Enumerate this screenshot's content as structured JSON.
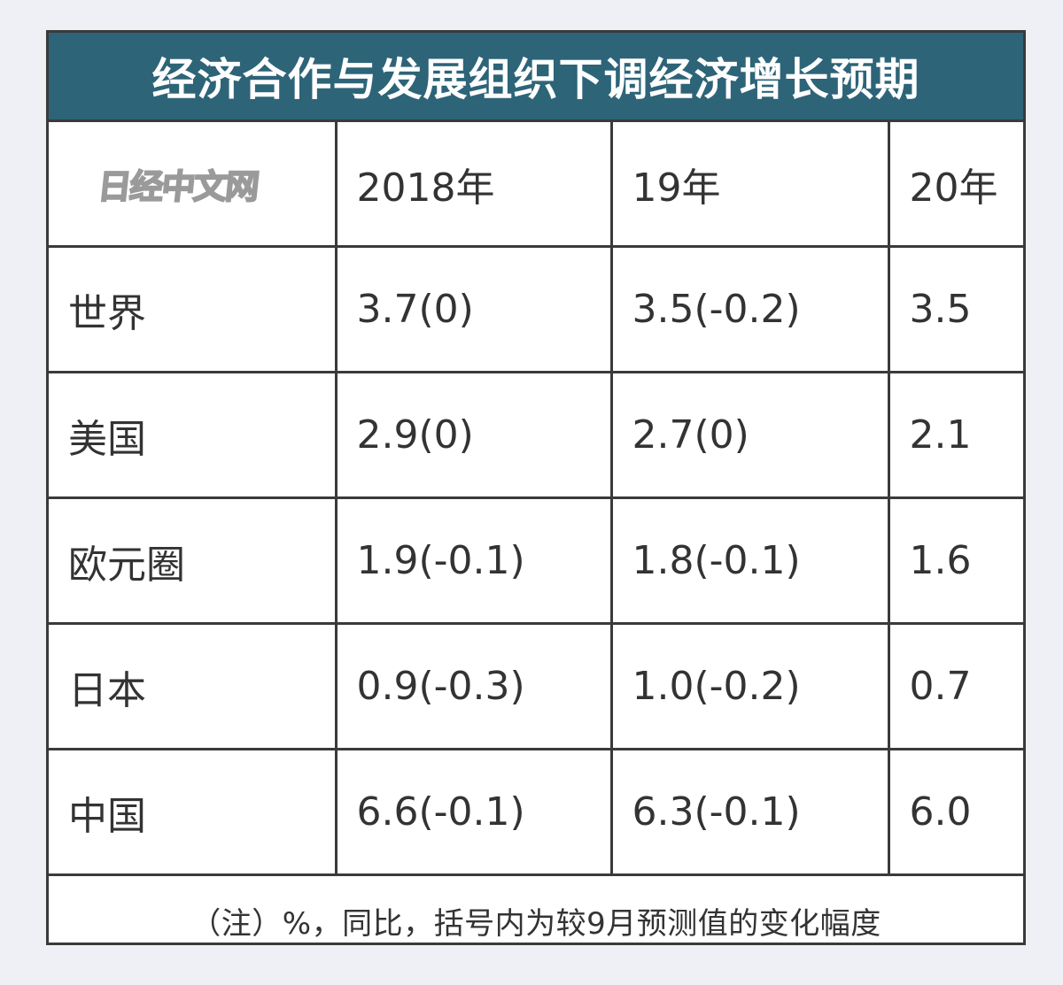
{
  "title": "经济合作与发展组织下调经济增长预期",
  "watermark": "日经中文网",
  "note": "（注）%，同比，括号内为较9月预测值的变化幅度",
  "colors": {
    "header_bg": "#2d6478",
    "border": "#3a3a3a",
    "text": "#333333"
  },
  "chart_data": {
    "type": "table",
    "title": "经济合作与发展组织下调经济增长预期",
    "columns": [
      "2018年",
      "19年",
      "20年"
    ],
    "rows": [
      {
        "label": "世界",
        "cells": [
          "3.7(0)",
          "3.5(-0.2)",
          "3.5"
        ]
      },
      {
        "label": "美国",
        "cells": [
          "2.9(0)",
          "2.7(0)",
          "2.1"
        ]
      },
      {
        "label": "欧元圈",
        "cells": [
          "1.9(-0.1)",
          "1.8(-0.1)",
          "1.6"
        ]
      },
      {
        "label": "日本",
        "cells": [
          "0.9(-0.3)",
          "1.0(-0.2)",
          "0.7"
        ]
      },
      {
        "label": "中国",
        "cells": [
          "6.6(-0.1)",
          "6.3(-0.1)",
          "6.0"
        ]
      }
    ],
    "values": {
      "2018": [
        3.7,
        2.9,
        1.9,
        0.9,
        6.6
      ],
      "2019": [
        3.5,
        2.7,
        1.8,
        1.0,
        6.3
      ],
      "2020": [
        3.5,
        2.1,
        1.6,
        0.7,
        6.0
      ]
    },
    "revisions_vs_september": {
      "2018": [
        0,
        0,
        -0.1,
        -0.3,
        -0.1
      ],
      "2019": [
        -0.2,
        0,
        -0.1,
        -0.2,
        -0.1
      ]
    }
  }
}
